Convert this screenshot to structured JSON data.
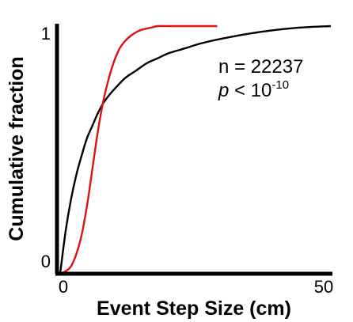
{
  "chart_data": {
    "type": "line",
    "xlabel": "Event Step Size (cm)",
    "ylabel": "Cumulative fraction",
    "xlim": [
      0,
      50
    ],
    "ylim": [
      0,
      1
    ],
    "x_ticks": [
      "0",
      "50"
    ],
    "y_ticks": [
      "0",
      "1"
    ],
    "grid": false,
    "annotations": {
      "n_text": "n = 22237",
      "p_symbol": "p",
      "p_rest": " < 10",
      "p_exponent": "-10"
    },
    "series": [
      {
        "color": "#000000",
        "x": [
          0,
          1,
          2,
          3,
          4,
          5,
          6,
          7,
          8,
          9,
          10,
          12,
          14,
          16,
          18,
          20,
          23,
          26,
          30,
          35,
          40,
          45,
          50
        ],
        "y": [
          0,
          0.17,
          0.3,
          0.4,
          0.48,
          0.55,
          0.6,
          0.65,
          0.69,
          0.72,
          0.745,
          0.79,
          0.82,
          0.85,
          0.87,
          0.89,
          0.91,
          0.93,
          0.95,
          0.97,
          0.985,
          0.995,
          1.0
        ]
      },
      {
        "color": "#e01010",
        "x": [
          0,
          1,
          2,
          3,
          4,
          5,
          6,
          7,
          8,
          9,
          10,
          11,
          12,
          13,
          14,
          15,
          16,
          17,
          18,
          20,
          22,
          25,
          29
        ],
        "y": [
          0,
          0.01,
          0.03,
          0.08,
          0.16,
          0.28,
          0.43,
          0.58,
          0.7,
          0.79,
          0.86,
          0.91,
          0.94,
          0.96,
          0.975,
          0.985,
          0.99,
          0.995,
          1.0,
          1.0,
          1.0,
          1.0,
          1.0
        ]
      }
    ]
  }
}
